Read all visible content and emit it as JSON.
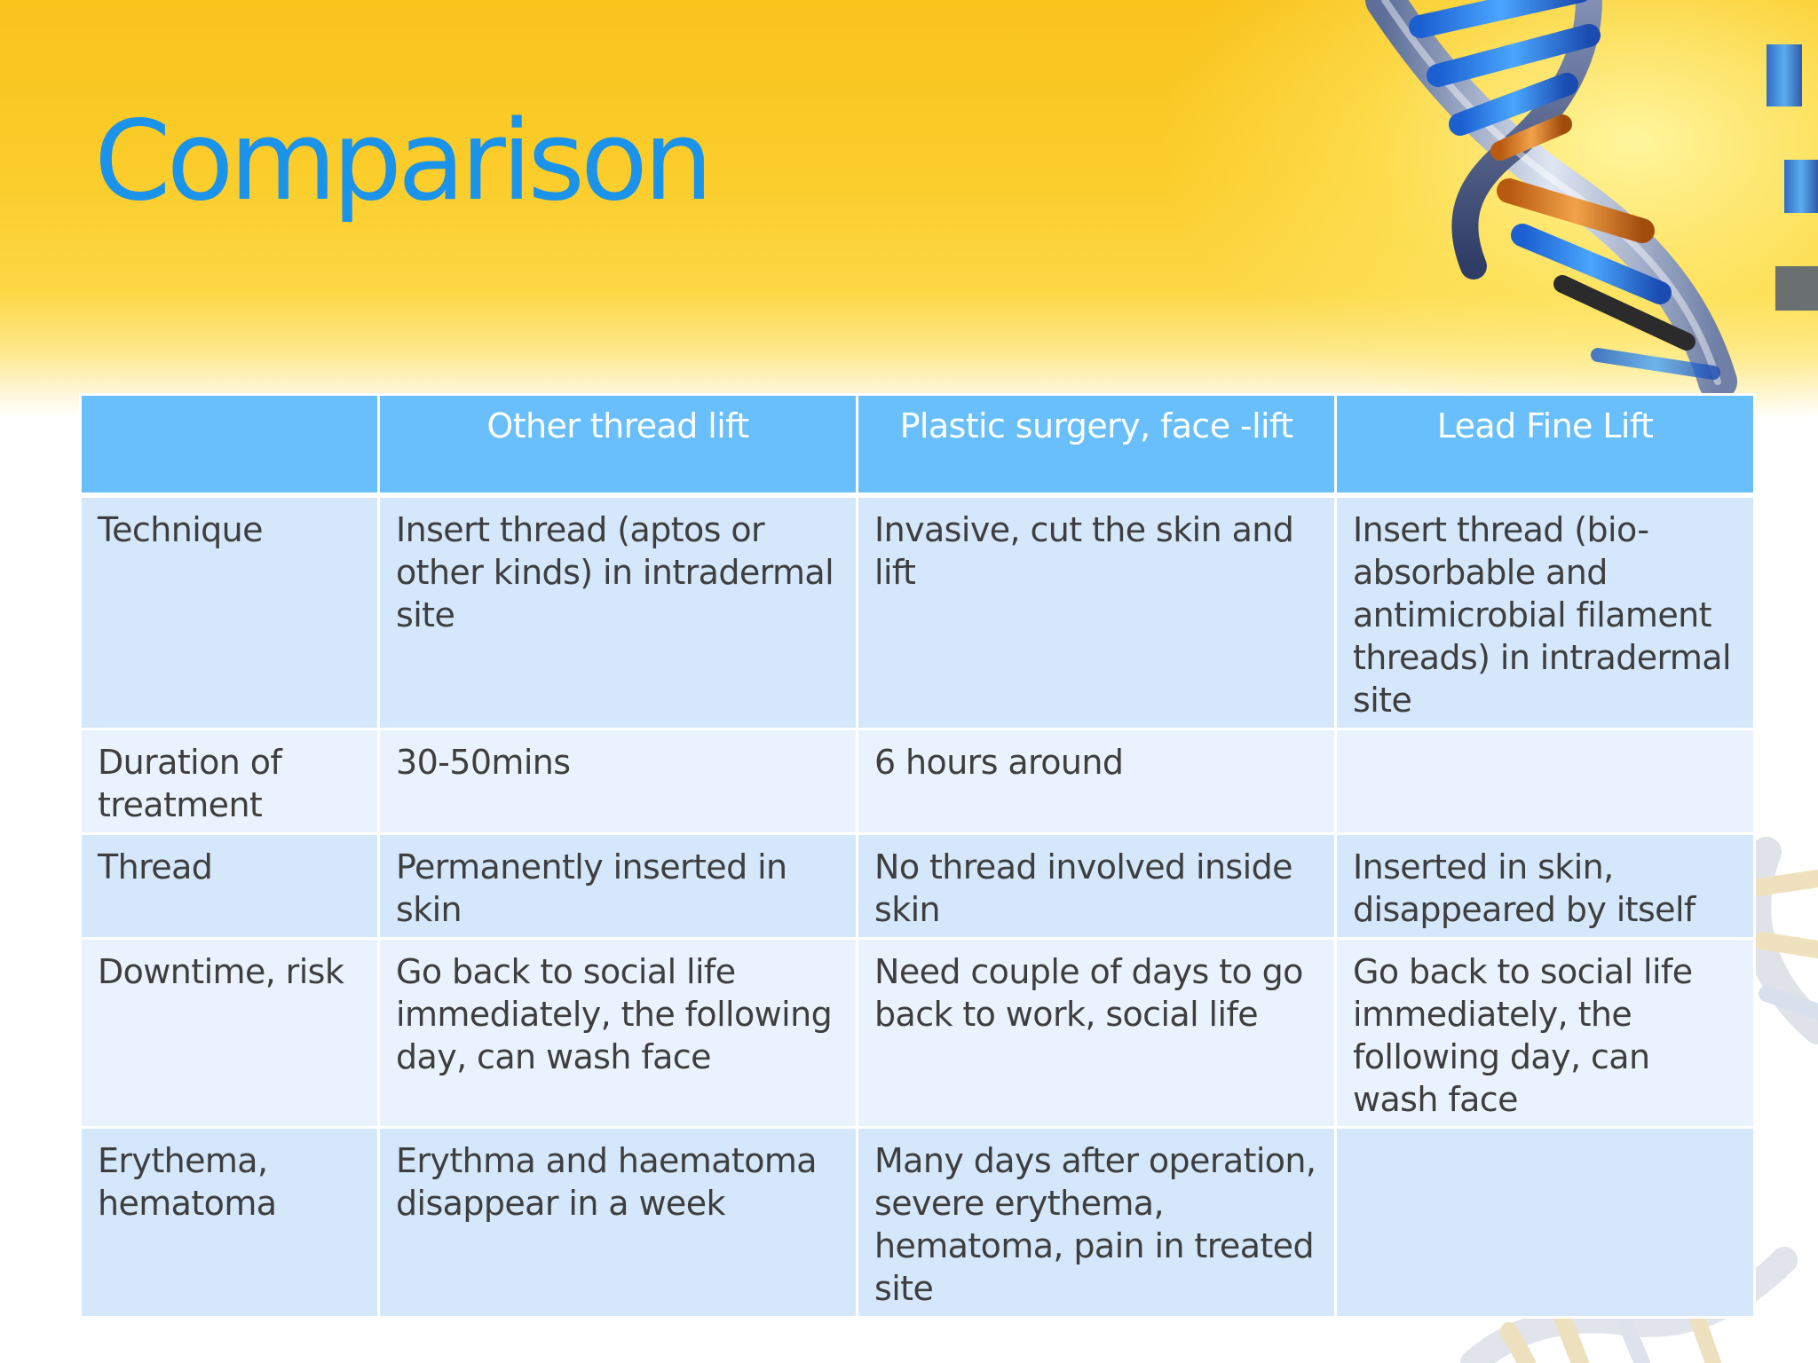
{
  "slide": {
    "title": "Comparison",
    "colors": {
      "title": "#1c93ea",
      "header_bg": "#68bffb",
      "row_dark": "#d4e7fb",
      "row_light": "#eaf3fd",
      "band_yellow": "#f9c31c"
    },
    "decoration": "dna-helix-graphic"
  },
  "table": {
    "headers": [
      "",
      "Other thread lift",
      "Plastic surgery, face -lift",
      "Lead Fine Lift"
    ],
    "rows": [
      {
        "label": "Technique",
        "cells": [
          "Insert thread (aptos or other kinds) in intradermal site",
          "Invasive, cut the skin and lift",
          "Insert thread (bio-absorbable and antimicrobial filament threads) in intradermal site"
        ]
      },
      {
        "label": "Duration of treatment",
        "cells": [
          "30-50mins",
          "6 hours around",
          ""
        ]
      },
      {
        "label": "Thread",
        "cells": [
          "Permanently inserted in skin",
          "No thread involved inside skin",
          "Inserted in skin, disappeared by itself"
        ]
      },
      {
        "label": "Downtime, risk",
        "cells": [
          "Go back to social life immediately, the following day, can wash face",
          "Need couple of days to go back to work, social life",
          "Go back to social life immediately, the following day, can wash face"
        ]
      },
      {
        "label": "Erythema, hematoma",
        "cells": [
          "Erythma and haematoma disappear in a week",
          "Many days after operation, severe erythema, hematoma, pain in treated site",
          ""
        ]
      }
    ]
  }
}
